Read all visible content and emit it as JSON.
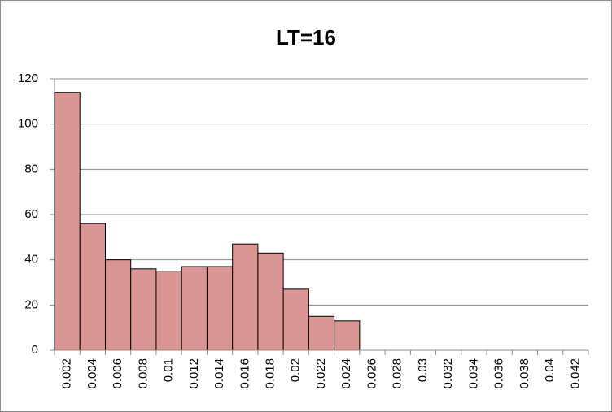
{
  "chart_data": {
    "type": "bar",
    "title": "LT=16",
    "categories": [
      "0.002",
      "0.004",
      "0.006",
      "0.008",
      "0.01",
      "0.012",
      "0.014",
      "0.016",
      "0.018",
      "0.02",
      "0.022",
      "0.024",
      "0.026",
      "0.028",
      "0.03",
      "0.032",
      "0.034",
      "0.036",
      "0.038",
      "0.04",
      "0.042"
    ],
    "values": [
      114,
      56,
      40,
      36,
      35,
      37,
      37,
      47,
      43,
      27,
      15,
      13,
      0,
      0,
      0,
      0,
      0,
      0,
      0,
      0,
      0
    ],
    "color": "#d99694",
    "ylim": [
      0,
      120
    ],
    "yticks": [
      0,
      20,
      40,
      60,
      80,
      100,
      120
    ],
    "grid": true
  }
}
